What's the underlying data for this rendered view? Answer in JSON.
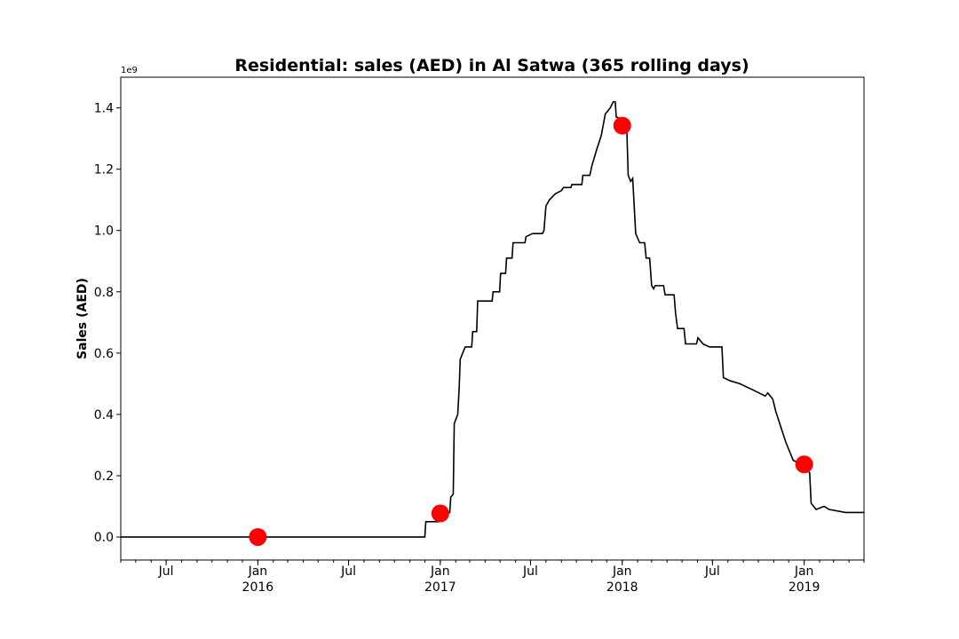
{
  "chart_data": {
    "type": "line",
    "title": "Residential: sales (AED) in Al Satwa (365 rolling days)",
    "xlabel": "",
    "ylabel": "Sales (AED)",
    "y_scale_label": "1e9",
    "y_multiplier": 1000000000,
    "xlim": [
      "2015-04-01",
      "2019-05-01"
    ],
    "ylim": [
      -0.075,
      1.5
    ],
    "grid": false,
    "legend": "none",
    "line_color": "#000000",
    "marker_color": "#ff0000",
    "y_ticks": [
      {
        "value": 0.0,
        "label": "0.0"
      },
      {
        "value": 0.2,
        "label": "0.2"
      },
      {
        "value": 0.4,
        "label": "0.4"
      },
      {
        "value": 0.6,
        "label": "0.6"
      },
      {
        "value": 0.8,
        "label": "0.8"
      },
      {
        "value": 1.0,
        "label": "1.0"
      },
      {
        "value": 1.2,
        "label": "1.2"
      },
      {
        "value": 1.4,
        "label": "1.4"
      }
    ],
    "x_ticks": [
      {
        "date": "2015-07-01",
        "label": "Jul",
        "sub": ""
      },
      {
        "date": "2016-01-01",
        "label": "Jan",
        "sub": "2016"
      },
      {
        "date": "2016-07-01",
        "label": "Jul",
        "sub": ""
      },
      {
        "date": "2017-01-01",
        "label": "Jan",
        "sub": "2017"
      },
      {
        "date": "2017-07-01",
        "label": "Jul",
        "sub": ""
      },
      {
        "date": "2018-01-01",
        "label": "Jan",
        "sub": "2018"
      },
      {
        "date": "2018-07-01",
        "label": "Jul",
        "sub": ""
      },
      {
        "date": "2019-01-01",
        "label": "Jan",
        "sub": "2019"
      }
    ],
    "series": [
      {
        "points": [
          [
            "2015-04-01",
            0.0
          ],
          [
            "2016-12-01",
            0.0
          ],
          [
            "2016-12-03",
            0.05
          ],
          [
            "2016-12-28",
            0.05
          ],
          [
            "2016-12-30",
            0.07
          ],
          [
            "2017-01-20",
            0.08
          ],
          [
            "2017-01-22",
            0.13
          ],
          [
            "2017-01-27",
            0.14
          ],
          [
            "2017-01-29",
            0.37
          ],
          [
            "2017-02-05",
            0.4
          ],
          [
            "2017-02-08",
            0.49
          ],
          [
            "2017-02-10",
            0.58
          ],
          [
            "2017-02-15",
            0.6
          ],
          [
            "2017-02-20",
            0.62
          ],
          [
            "2017-03-05",
            0.62
          ],
          [
            "2017-03-07",
            0.67
          ],
          [
            "2017-03-15",
            0.67
          ],
          [
            "2017-03-17",
            0.77
          ],
          [
            "2017-04-15",
            0.77
          ],
          [
            "2017-04-17",
            0.8
          ],
          [
            "2017-04-30",
            0.8
          ],
          [
            "2017-05-02",
            0.86
          ],
          [
            "2017-05-12",
            0.86
          ],
          [
            "2017-05-14",
            0.91
          ],
          [
            "2017-05-25",
            0.91
          ],
          [
            "2017-05-27",
            0.96
          ],
          [
            "2017-06-20",
            0.96
          ],
          [
            "2017-06-22",
            0.98
          ],
          [
            "2017-07-05",
            0.99
          ],
          [
            "2017-07-25",
            0.99
          ],
          [
            "2017-07-28",
            1.0
          ],
          [
            "2017-08-01",
            1.08
          ],
          [
            "2017-08-08",
            1.1
          ],
          [
            "2017-08-20",
            1.12
          ],
          [
            "2017-09-01",
            1.13
          ],
          [
            "2017-09-05",
            1.14
          ],
          [
            "2017-09-20",
            1.14
          ],
          [
            "2017-09-22",
            1.15
          ],
          [
            "2017-10-12",
            1.15
          ],
          [
            "2017-10-14",
            1.18
          ],
          [
            "2017-10-28",
            1.18
          ],
          [
            "2017-11-01",
            1.21
          ],
          [
            "2017-11-10",
            1.26
          ],
          [
            "2017-11-20",
            1.31
          ],
          [
            "2017-11-28",
            1.38
          ],
          [
            "2017-12-08",
            1.4
          ],
          [
            "2017-12-14",
            1.42
          ],
          [
            "2017-12-18",
            1.42
          ],
          [
            "2017-12-20",
            1.37
          ],
          [
            "2018-01-05",
            1.36
          ],
          [
            "2018-01-10",
            1.34
          ],
          [
            "2018-01-13",
            1.18
          ],
          [
            "2018-01-18",
            1.16
          ],
          [
            "2018-01-22",
            1.17
          ],
          [
            "2018-01-25",
            1.08
          ],
          [
            "2018-01-28",
            0.99
          ],
          [
            "2018-02-05",
            0.96
          ],
          [
            "2018-02-15",
            0.96
          ],
          [
            "2018-02-18",
            0.91
          ],
          [
            "2018-02-25",
            0.91
          ],
          [
            "2018-03-01",
            0.82
          ],
          [
            "2018-03-05",
            0.81
          ],
          [
            "2018-03-08",
            0.82
          ],
          [
            "2018-03-25",
            0.82
          ],
          [
            "2018-03-28",
            0.79
          ],
          [
            "2018-04-15",
            0.79
          ],
          [
            "2018-04-18",
            0.73
          ],
          [
            "2018-04-22",
            0.68
          ],
          [
            "2018-05-05",
            0.68
          ],
          [
            "2018-05-08",
            0.63
          ],
          [
            "2018-05-30",
            0.63
          ],
          [
            "2018-06-02",
            0.65
          ],
          [
            "2018-06-12",
            0.63
          ],
          [
            "2018-06-25",
            0.62
          ],
          [
            "2018-07-20",
            0.62
          ],
          [
            "2018-07-23",
            0.52
          ],
          [
            "2018-08-05",
            0.51
          ],
          [
            "2018-08-25",
            0.5
          ],
          [
            "2018-09-20",
            0.48
          ],
          [
            "2018-10-15",
            0.46
          ],
          [
            "2018-10-20",
            0.47
          ],
          [
            "2018-10-30",
            0.45
          ],
          [
            "2018-11-05",
            0.41
          ],
          [
            "2018-11-15",
            0.36
          ],
          [
            "2018-11-25",
            0.31
          ],
          [
            "2018-12-10",
            0.25
          ],
          [
            "2018-12-25",
            0.24
          ],
          [
            "2019-01-12",
            0.21
          ],
          [
            "2019-01-15",
            0.11
          ],
          [
            "2019-01-25",
            0.09
          ],
          [
            "2019-02-10",
            0.1
          ],
          [
            "2019-02-20",
            0.09
          ],
          [
            "2019-03-25",
            0.08
          ],
          [
            "2019-05-01",
            0.08
          ]
        ]
      }
    ],
    "highlight_points": [
      [
        "2016-01-01",
        0.0
      ],
      [
        "2017-01-01",
        0.077
      ],
      [
        "2018-01-01",
        1.342
      ],
      [
        "2019-01-01",
        0.237
      ]
    ]
  }
}
